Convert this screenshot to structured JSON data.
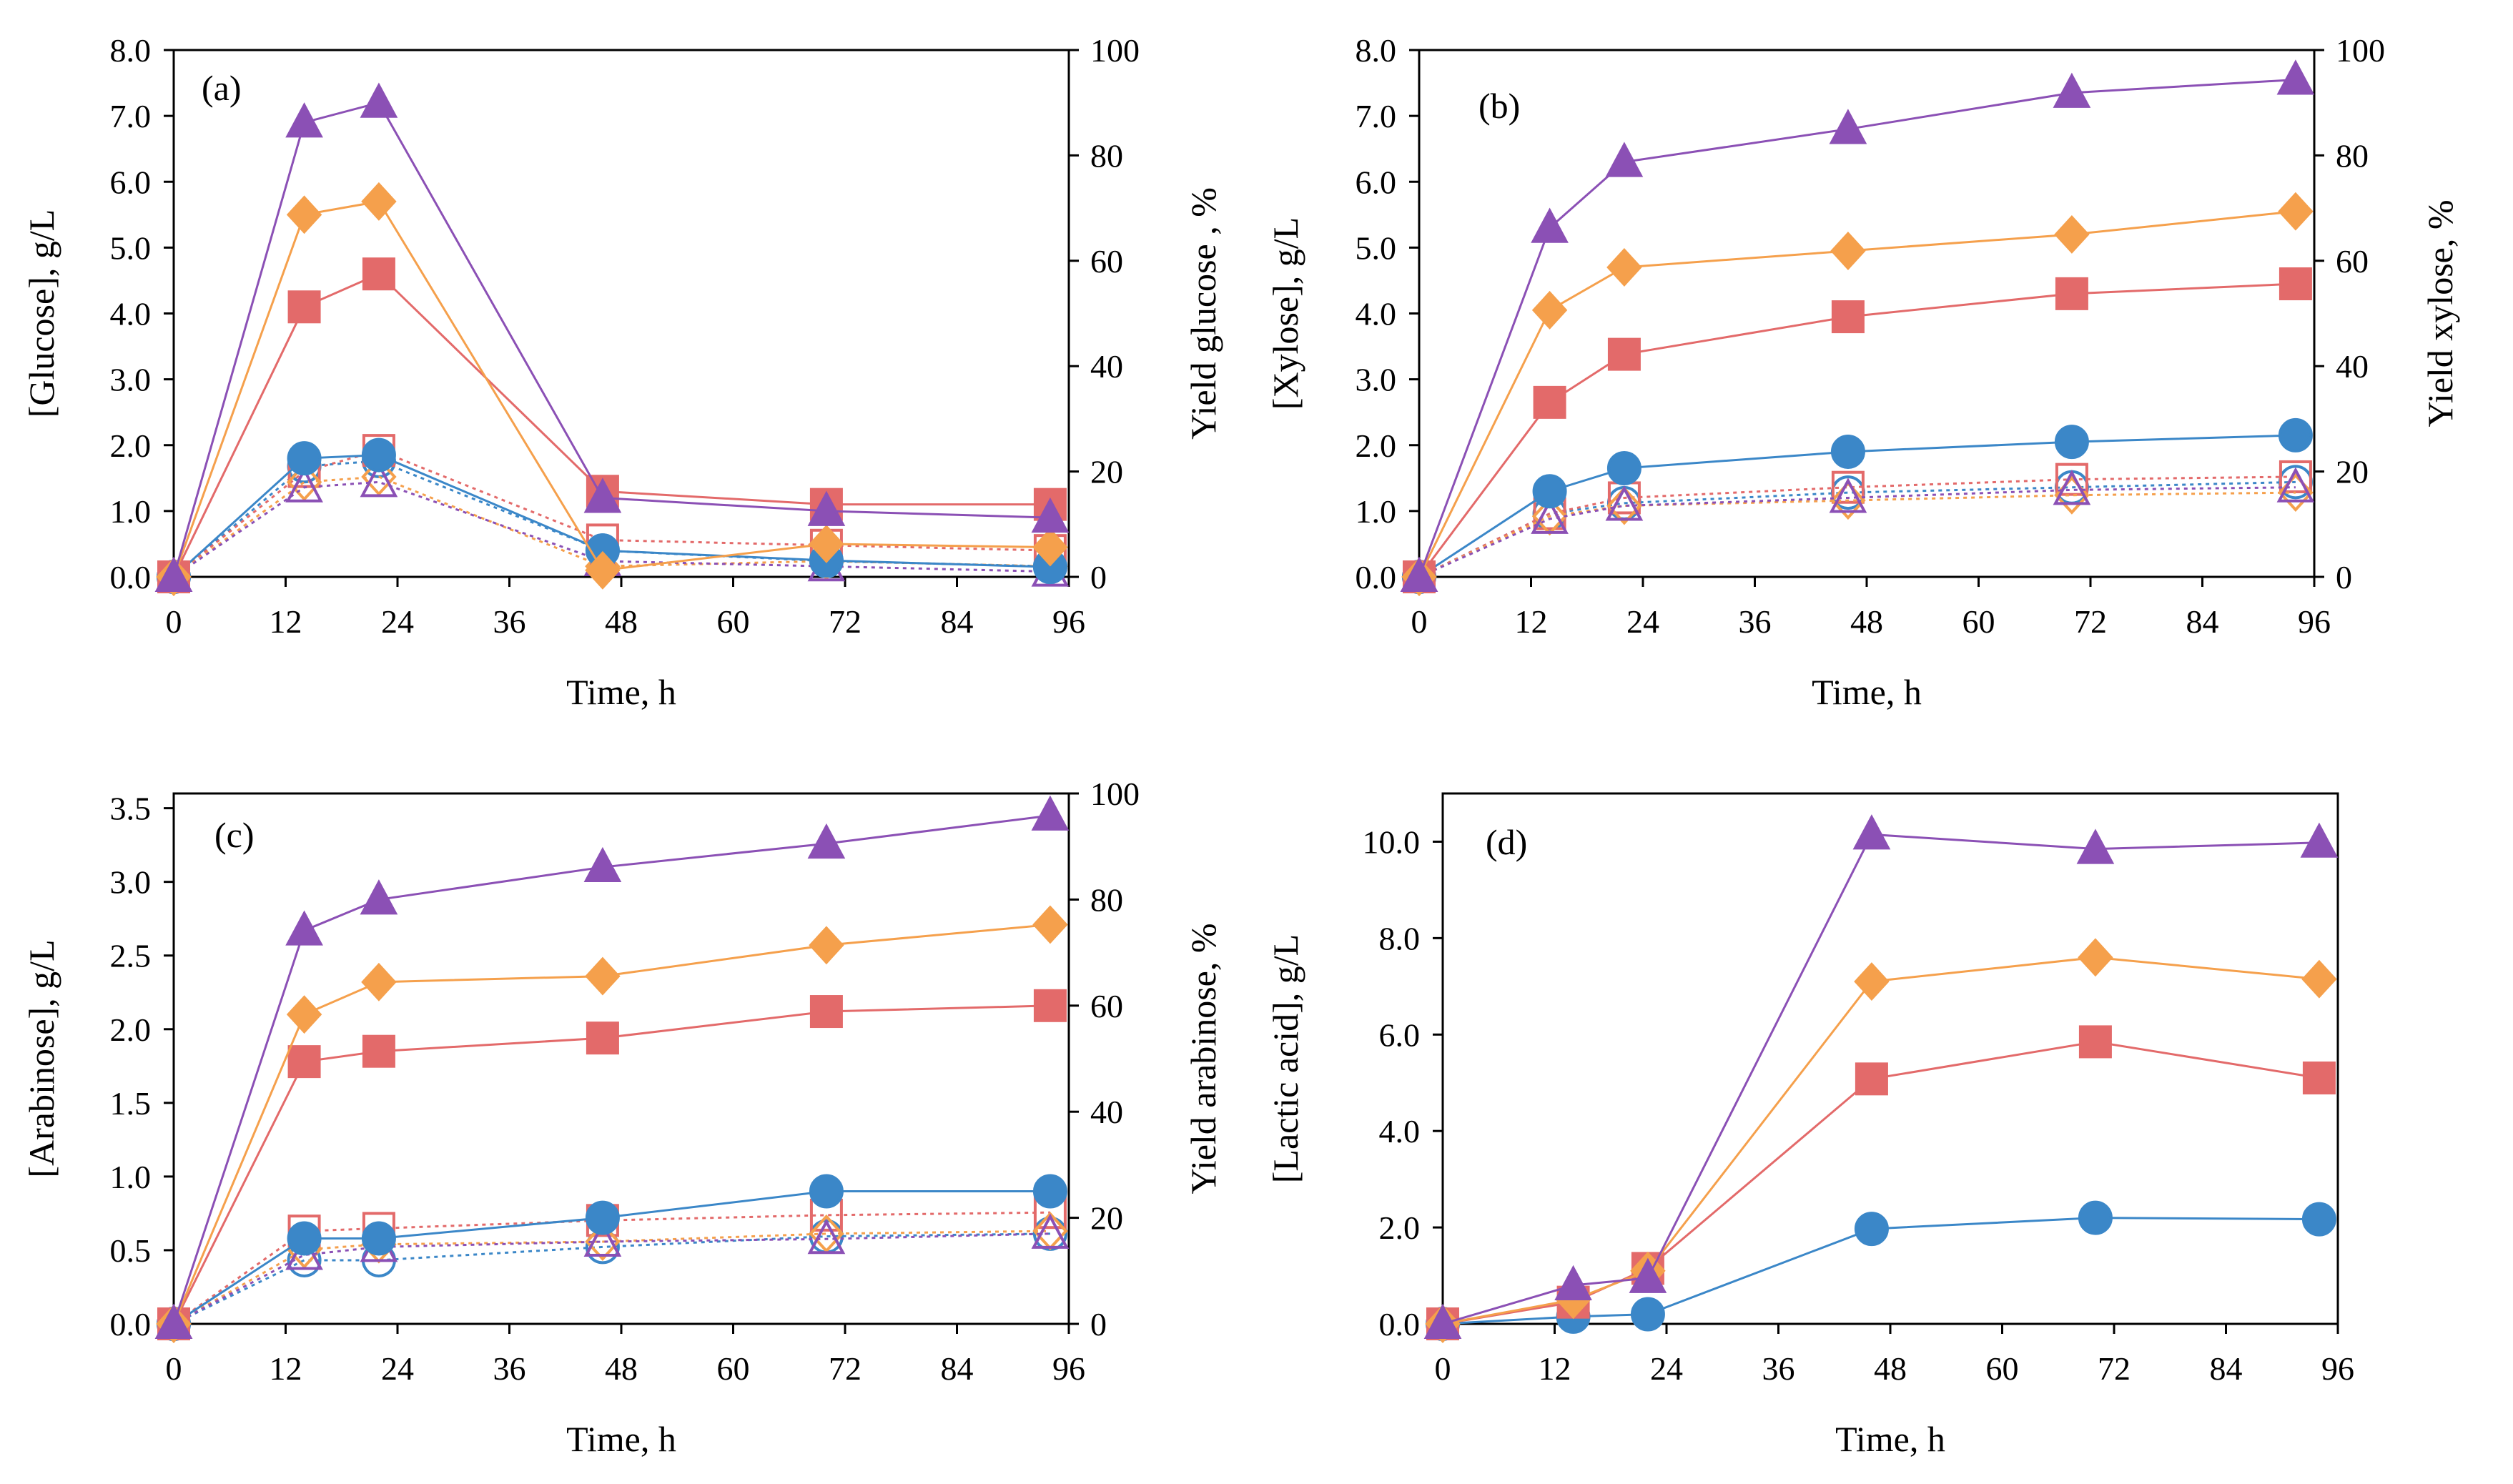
{
  "colors": {
    "blue": "#3b87c8",
    "red": "#e36a6a",
    "orange": "#f5a04c",
    "purple": "#8b50b5",
    "axis": "#000000"
  },
  "chart_data": [
    {
      "type": "line",
      "panel_label": "(a)",
      "xlabel": "Time, h",
      "ylabel": "[Glucose], g/L",
      "y2label": "Yield glucose , %",
      "xlim": [
        0,
        96
      ],
      "ylim": [
        0,
        8
      ],
      "y2lim": [
        0,
        100
      ],
      "xticks": [
        "0",
        "12",
        "24",
        "36",
        "48",
        "60",
        "72",
        "84",
        "96"
      ],
      "yticks": [
        "0.0",
        "1.0",
        "2.0",
        "3.0",
        "4.0",
        "5.0",
        "6.0",
        "7.0",
        "8.0"
      ],
      "y2ticks": [
        "0",
        "20",
        "40",
        "60",
        "80",
        "100"
      ],
      "x": [
        0,
        14,
        22,
        46,
        70,
        94
      ],
      "series": [
        {
          "name": "blue-circle",
          "color": "blue",
          "marker": "circle",
          "axis": "left",
          "dashed": false,
          "values": [
            0,
            1.8,
            1.85,
            0.4,
            0.25,
            0.15
          ]
        },
        {
          "name": "red-square",
          "color": "red",
          "marker": "square",
          "axis": "left",
          "dashed": false,
          "values": [
            0,
            4.1,
            4.6,
            1.3,
            1.1,
            1.1
          ]
        },
        {
          "name": "orange-diamond",
          "color": "orange",
          "marker": "diamond",
          "axis": "left",
          "dashed": false,
          "values": [
            0,
            5.5,
            5.7,
            0.1,
            0.5,
            0.45
          ]
        },
        {
          "name": "purple-triangle",
          "color": "purple",
          "marker": "triangle",
          "axis": "left",
          "dashed": false,
          "values": [
            0,
            6.9,
            7.2,
            1.2,
            1.0,
            0.9
          ]
        },
        {
          "name": "blue-circle-open",
          "color": "blue",
          "marker": "circle-open",
          "axis": "right",
          "dashed": true,
          "values": [
            0,
            21,
            22,
            5,
            3,
            2
          ]
        },
        {
          "name": "red-square-open",
          "color": "red",
          "marker": "square-open",
          "axis": "right",
          "dashed": true,
          "values": [
            0,
            20,
            24,
            7,
            6,
            5
          ]
        },
        {
          "name": "orange-diamond-open",
          "color": "orange",
          "marker": "diamond-open",
          "axis": "right",
          "dashed": true,
          "values": [
            0,
            18,
            19,
            2,
            3,
            2
          ]
        },
        {
          "name": "purple-triangle-open",
          "color": "purple",
          "marker": "triangle-open",
          "axis": "right",
          "dashed": true,
          "values": [
            0,
            17,
            18,
            3,
            2,
            1
          ]
        }
      ]
    },
    {
      "type": "line",
      "panel_label": "(b)",
      "xlabel": "Time, h",
      "ylabel": "[Xylose], g/L",
      "y2label": "Yield xylose, %",
      "xlim": [
        0,
        96
      ],
      "ylim": [
        0,
        8
      ],
      "y2lim": [
        0,
        100
      ],
      "xticks": [
        "0",
        "12",
        "24",
        "36",
        "48",
        "60",
        "72",
        "84",
        "96"
      ],
      "yticks": [
        "0.0",
        "1.0",
        "2.0",
        "3.0",
        "4.0",
        "5.0",
        "6.0",
        "7.0",
        "8.0"
      ],
      "y2ticks": [
        "0",
        "20",
        "40",
        "60",
        "80",
        "100"
      ],
      "x": [
        0,
        14,
        22,
        46,
        70,
        94
      ],
      "series": [
        {
          "name": "blue-circle",
          "color": "blue",
          "marker": "circle",
          "axis": "left",
          "dashed": false,
          "values": [
            0,
            1.3,
            1.65,
            1.9,
            2.05,
            2.15
          ]
        },
        {
          "name": "red-square",
          "color": "red",
          "marker": "square",
          "axis": "left",
          "dashed": false,
          "values": [
            0,
            2.65,
            3.38,
            3.95,
            4.3,
            4.45
          ]
        },
        {
          "name": "orange-diamond",
          "color": "orange",
          "marker": "diamond",
          "axis": "left",
          "dashed": false,
          "values": [
            0,
            4.05,
            4.7,
            4.95,
            5.2,
            5.55
          ]
        },
        {
          "name": "purple-triangle",
          "color": "purple",
          "marker": "triangle",
          "axis": "left",
          "dashed": false,
          "values": [
            0,
            5.3,
            6.3,
            6.8,
            7.35,
            7.55
          ]
        },
        {
          "name": "blue-circle-open",
          "color": "blue",
          "marker": "circle-open",
          "axis": "right",
          "dashed": true,
          "values": [
            0,
            12,
            14,
            16,
            17,
            18
          ]
        },
        {
          "name": "red-square-open",
          "color": "red",
          "marker": "square-open",
          "axis": "right",
          "dashed": true,
          "values": [
            0,
            12,
            15,
            17,
            18.5,
            19
          ]
        },
        {
          "name": "orange-diamond-open",
          "color": "orange",
          "marker": "diamond-open",
          "axis": "right",
          "dashed": true,
          "values": [
            0,
            11.5,
            13.5,
            14.5,
            15.5,
            16
          ]
        },
        {
          "name": "purple-triangle-open",
          "color": "purple",
          "marker": "triangle-open",
          "axis": "right",
          "dashed": true,
          "values": [
            0,
            11,
            13.5,
            15,
            16.5,
            17
          ]
        }
      ]
    },
    {
      "type": "line",
      "panel_label": "(c)",
      "xlabel": "Time, h",
      "ylabel": "[Arabinose], g/L",
      "y2label": "Yield arabinose, %",
      "xlim": [
        0,
        96
      ],
      "ylim": [
        0,
        3.6
      ],
      "y2lim": [
        0,
        100
      ],
      "xticks": [
        "0",
        "12",
        "24",
        "36",
        "48",
        "60",
        "72",
        "84",
        "96"
      ],
      "yticks": [
        "0.0",
        "0.5",
        "1.0",
        "1.5",
        "2.0",
        "2.5",
        "3.0",
        "3.5"
      ],
      "y2ticks": [
        "0",
        "20",
        "40",
        "60",
        "80",
        "100"
      ],
      "x": [
        0,
        14,
        22,
        46,
        70,
        94
      ],
      "series": [
        {
          "name": "blue-circle",
          "color": "blue",
          "marker": "circle",
          "axis": "left",
          "dashed": false,
          "values": [
            0,
            0.58,
            0.58,
            0.72,
            0.9,
            0.9
          ]
        },
        {
          "name": "red-square",
          "color": "red",
          "marker": "square",
          "axis": "left",
          "dashed": false,
          "values": [
            0,
            1.78,
            1.85,
            1.94,
            2.12,
            2.16
          ]
        },
        {
          "name": "orange-diamond",
          "color": "orange",
          "marker": "diamond",
          "axis": "left",
          "dashed": false,
          "values": [
            0,
            2.1,
            2.32,
            2.36,
            2.57,
            2.71
          ]
        },
        {
          "name": "purple-triangle",
          "color": "purple",
          "marker": "triangle",
          "axis": "left",
          "dashed": false,
          "values": [
            0,
            2.67,
            2.88,
            3.1,
            3.26,
            3.45
          ]
        },
        {
          "name": "blue-circle-open",
          "color": "blue",
          "marker": "circle-open",
          "axis": "right",
          "dashed": true,
          "values": [
            0,
            12,
            12,
            14.5,
            16.5,
            17
          ]
        },
        {
          "name": "red-square-open",
          "color": "red",
          "marker": "square-open",
          "axis": "right",
          "dashed": true,
          "values": [
            0,
            17.5,
            18,
            19.5,
            20.5,
            21
          ]
        },
        {
          "name": "orange-diamond-open",
          "color": "orange",
          "marker": "diamond-open",
          "axis": "right",
          "dashed": true,
          "values": [
            0,
            14,
            15,
            15.5,
            17,
            17.5
          ]
        },
        {
          "name": "purple-triangle-open",
          "color": "purple",
          "marker": "triangle-open",
          "axis": "right",
          "dashed": true,
          "values": [
            0,
            13,
            14.5,
            15.5,
            16,
            17
          ]
        }
      ]
    },
    {
      "type": "line",
      "panel_label": "(d)",
      "xlabel": "Time, h",
      "ylabel": "[Lactic acid], g/L",
      "y2label": "",
      "xlim": [
        0,
        96
      ],
      "ylim": [
        0,
        11
      ],
      "xticks": [
        "0",
        "12",
        "24",
        "36",
        "48",
        "60",
        "72",
        "84",
        "96"
      ],
      "yticks": [
        "0.0",
        "2.0",
        "4.0",
        "6.0",
        "8.0",
        "10.0"
      ],
      "x": [
        0,
        14,
        22,
        46,
        70,
        94
      ],
      "series": [
        {
          "name": "blue-circle",
          "color": "blue",
          "marker": "circle",
          "axis": "left",
          "dashed": false,
          "values": [
            0,
            0.15,
            0.2,
            1.97,
            2.2,
            2.17
          ]
        },
        {
          "name": "red-square",
          "color": "red",
          "marker": "square",
          "axis": "left",
          "dashed": false,
          "values": [
            0,
            0.45,
            1.15,
            5.08,
            5.85,
            5.1
          ]
        },
        {
          "name": "orange-diamond",
          "color": "orange",
          "marker": "diamond",
          "axis": "left",
          "dashed": false,
          "values": [
            0,
            0.5,
            1.1,
            7.1,
            7.6,
            7.15
          ]
        },
        {
          "name": "purple-triangle",
          "color": "purple",
          "marker": "triangle",
          "axis": "left",
          "dashed": false,
          "values": [
            0,
            0.8,
            0.95,
            10.15,
            9.85,
            9.98
          ]
        }
      ]
    }
  ]
}
